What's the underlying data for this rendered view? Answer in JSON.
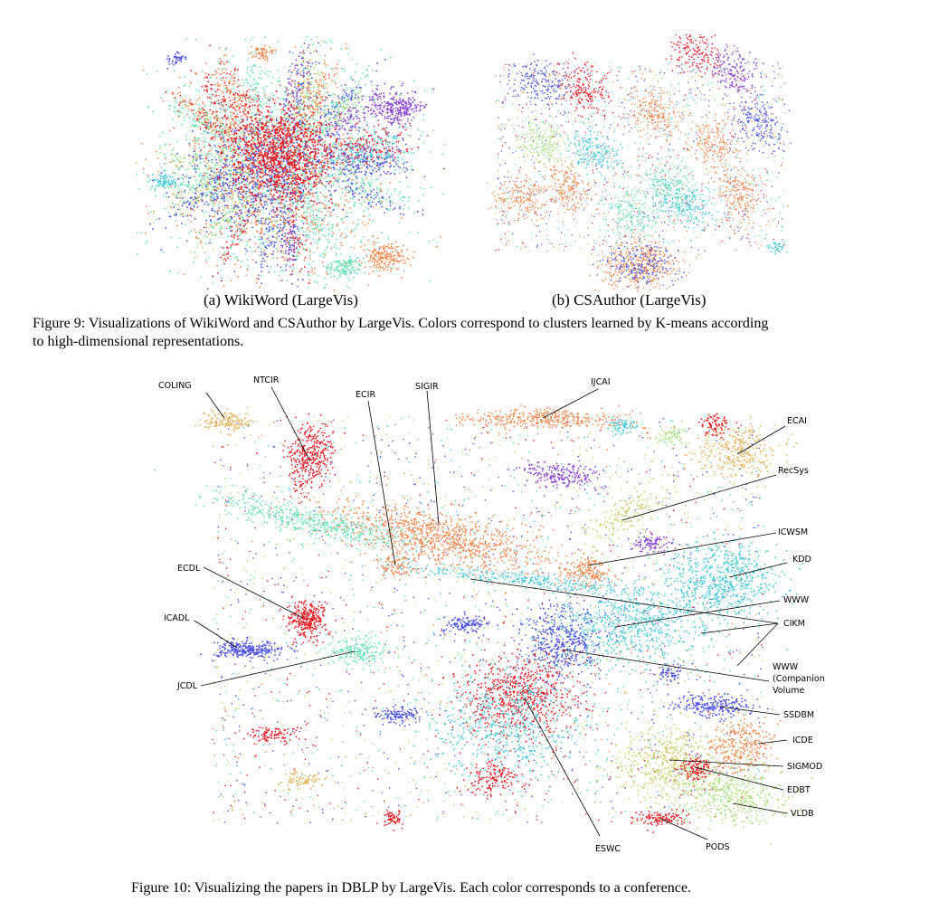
{
  "figure9": {
    "panels": [
      {
        "id": "wikiword",
        "caption": "(a) WikiWord (LargeVis)"
      },
      {
        "id": "csauthor",
        "caption": "(b) CSAuthor (LargeVis)"
      }
    ],
    "caption_line1": "Figure 9: Visualizations of WikiWord and CSAuthor by LargeVis. Colors correspond to clusters learned by K-means according",
    "caption_line2": "to high-dimensional representations."
  },
  "figure10": {
    "labels": [
      "COLING",
      "NTCIR",
      "ECIR",
      "SIGIR",
      "IJCAI",
      "ECAI",
      "RecSys",
      "ICWSM",
      "KDD",
      "ECDL",
      "WWW",
      "ICADL",
      "CIKM",
      "JCDL",
      "WWW",
      "(Companion",
      "Volume",
      "SSDBM",
      "ICDE",
      "SIGMOD",
      "EDBT",
      "VLDB",
      "ESWC",
      "PODS"
    ],
    "caption": "Figure 10: Visualizing the papers in DBLP by LargeVis. Each color corresponds to a conference."
  },
  "colors": {
    "red": "#ee1d24",
    "orange": "#f7874b",
    "blue": "#4b50e6",
    "cyan": "#40c8d8",
    "mint": "#66e0b4",
    "lightgreen": "#a7e07a",
    "olive": "#c8cf6a",
    "tan": "#e4b45a",
    "purple": "#8a3fd8",
    "pink": "#f56e8c"
  }
}
